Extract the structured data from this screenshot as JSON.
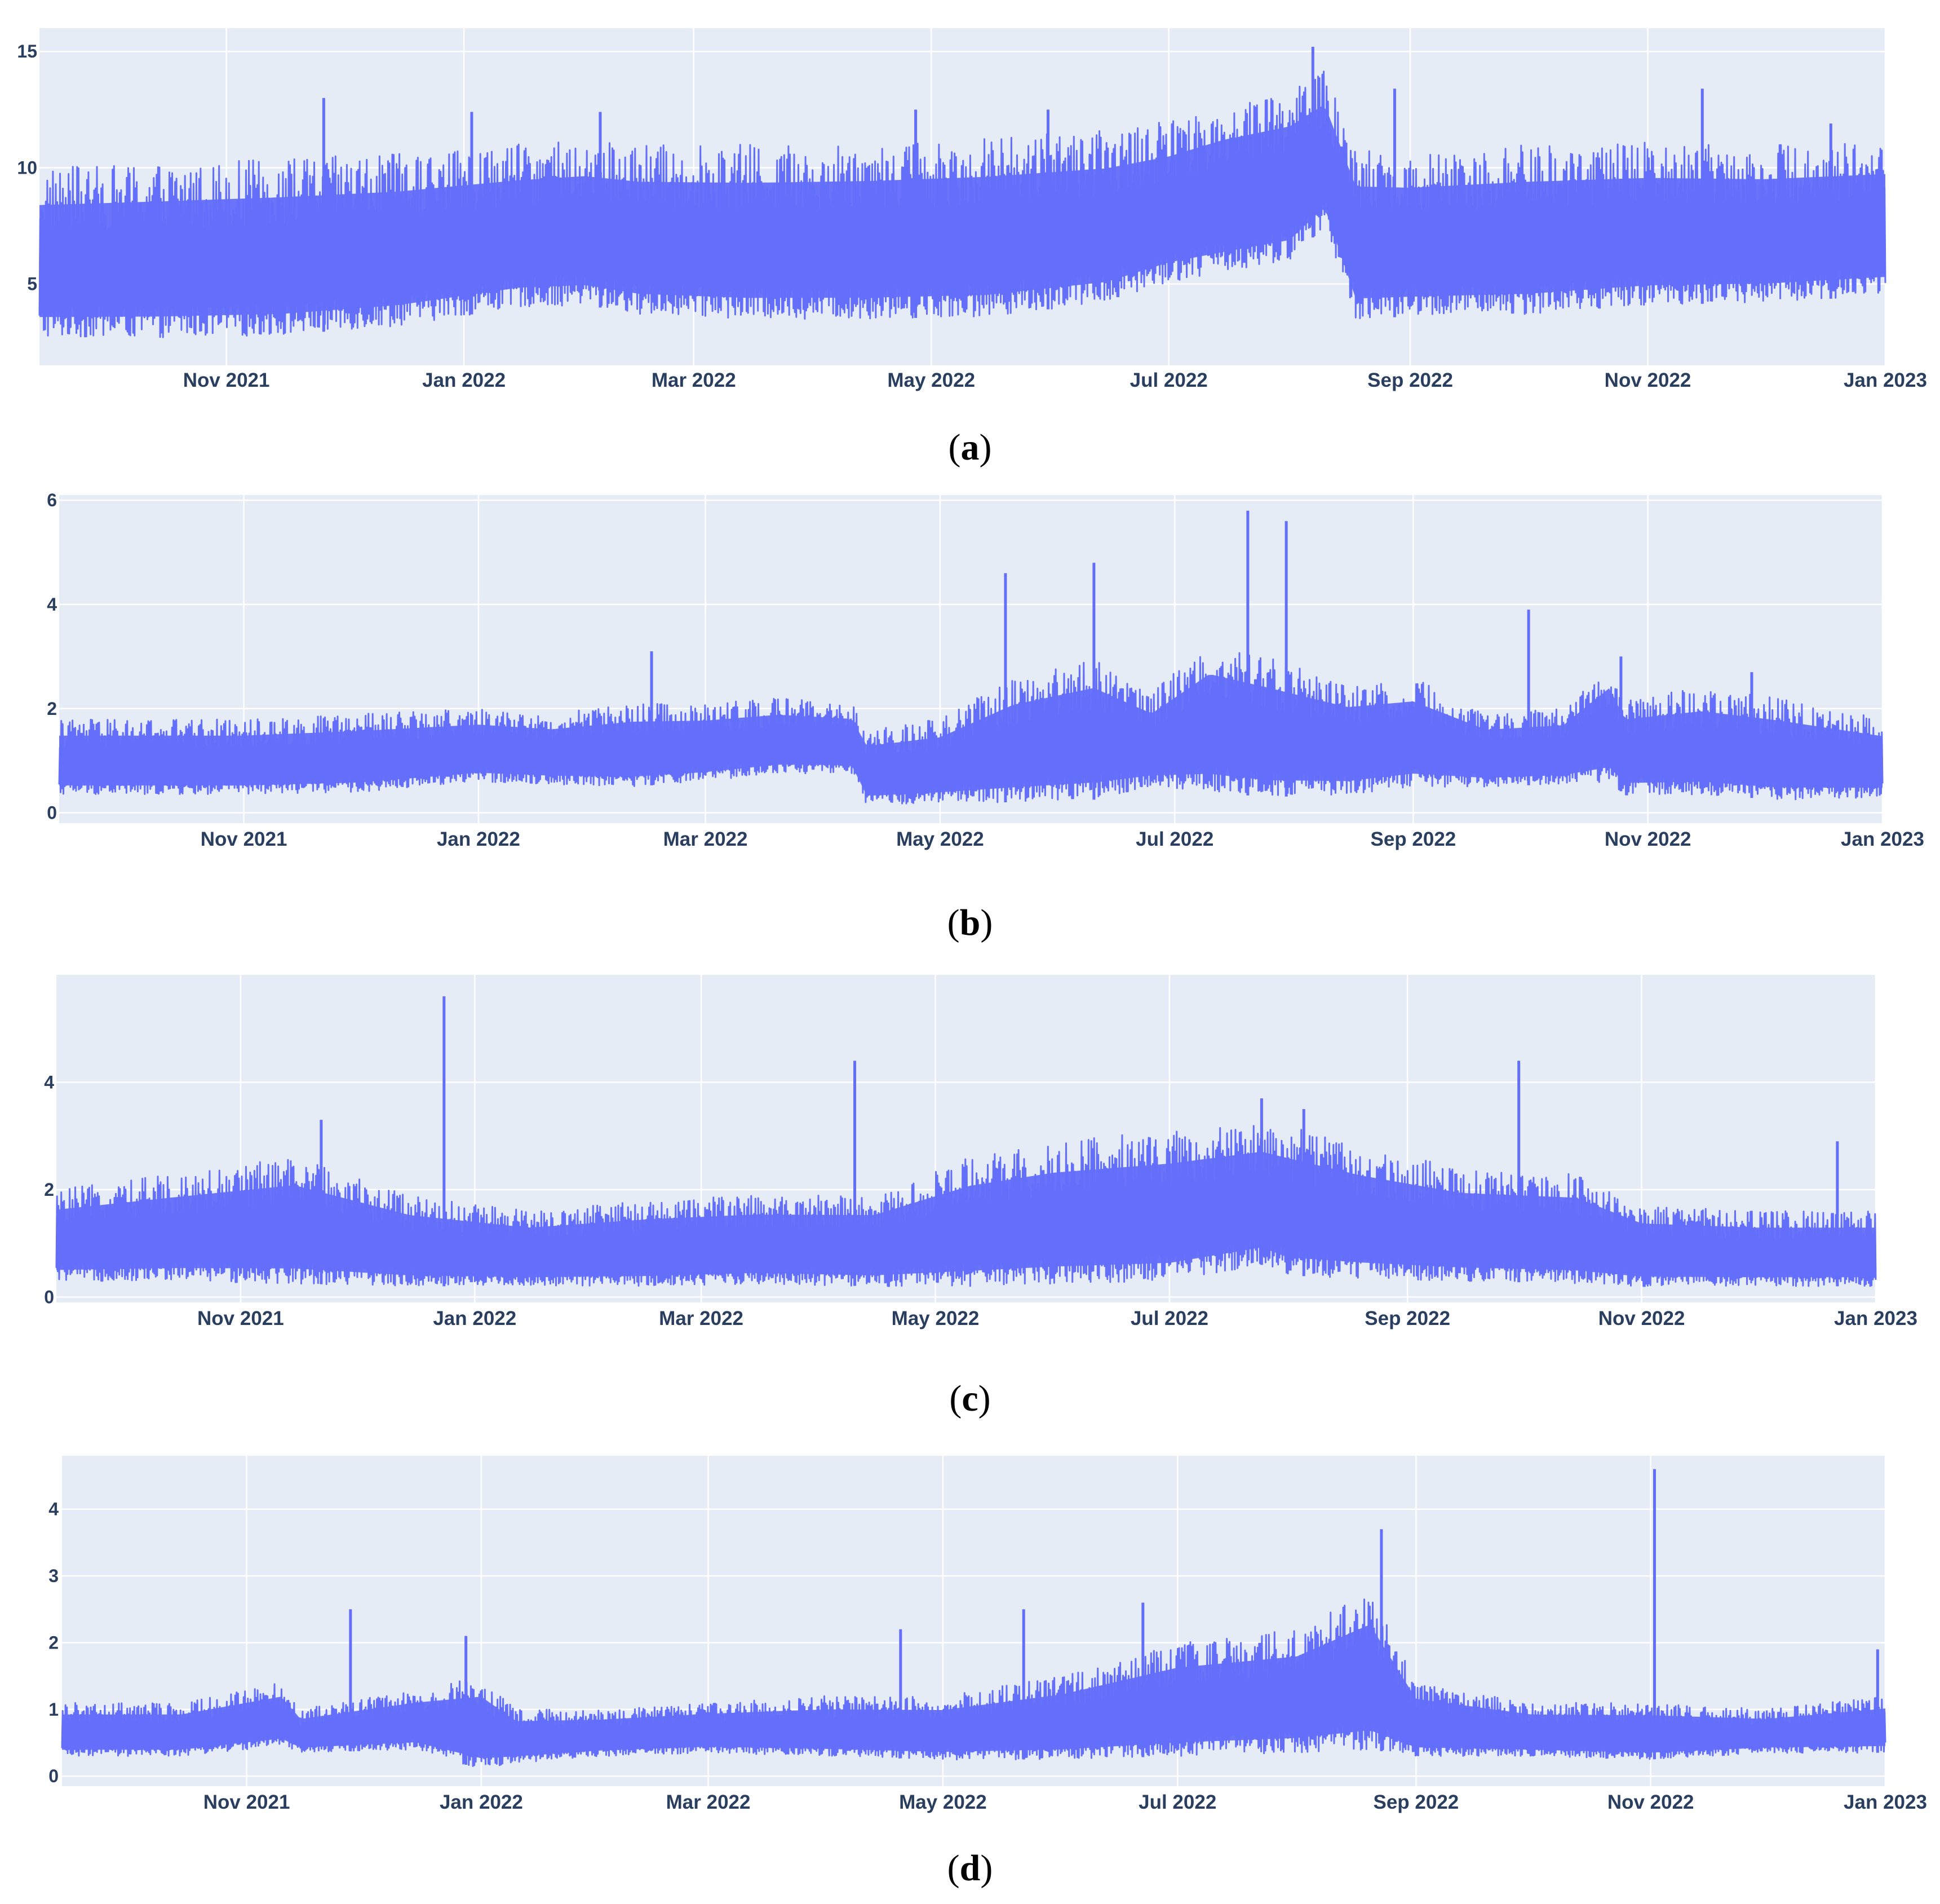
{
  "chart_data": [
    {
      "type": "line",
      "panel_label": "a",
      "x_tick_labels": [
        "Nov 2021",
        "Jan 2022",
        "Mar 2022",
        "May 2022",
        "Jul 2022",
        "Sep 2022",
        "Nov 2022",
        "Jan 2023"
      ],
      "y_ticks": [
        5,
        10,
        15
      ],
      "xlim": [
        "2021-09-14",
        "2023-01-01"
      ],
      "ylim": [
        1.5,
        16.0
      ],
      "grid": true,
      "series_color": "#636efa",
      "plot_background": "#e5ecf6",
      "series_envelope": {
        "x": [
          "2021-09-14",
          "2021-10-15",
          "2021-11-15",
          "2021-12-15",
          "2022-01-15",
          "2022-02-01",
          "2022-02-15",
          "2022-03-15",
          "2022-04-15",
          "2022-05-15",
          "2022-06-15",
          "2022-07-01",
          "2022-07-15",
          "2022-08-01",
          "2022-08-10",
          "2022-08-18",
          "2022-09-01",
          "2022-10-01",
          "2022-11-01",
          "2022-12-01",
          "2023-01-01"
        ],
        "low": [
          2.7,
          2.7,
          2.8,
          3.2,
          4.0,
          4.1,
          3.7,
          3.5,
          3.5,
          3.6,
          4.2,
          5.1,
          5.5,
          6.0,
          7.5,
          3.5,
          3.6,
          3.7,
          4.1,
          4.2,
          4.5
        ],
        "high": [
          10.0,
          10.2,
          10.4,
          10.6,
          11.0,
          11.2,
          11.0,
          11.0,
          11.1,
          11.3,
          11.6,
          12.0,
          12.8,
          13.4,
          14.2,
          10.8,
          10.7,
          11.0,
          11.1,
          11.0,
          11.2
        ],
        "peaks": [
          [
            "2021-11-26",
            13.0
          ],
          [
            "2022-01-03",
            12.4
          ],
          [
            "2022-02-05",
            12.4
          ],
          [
            "2022-04-27",
            12.5
          ],
          [
            "2022-05-31",
            12.5
          ],
          [
            "2022-08-07",
            15.2
          ],
          [
            "2022-08-28",
            13.4
          ],
          [
            "2022-11-15",
            13.4
          ],
          [
            "2022-12-18",
            11.9
          ]
        ]
      }
    },
    {
      "type": "line",
      "panel_label": "b",
      "x_tick_labels": [
        "Nov 2021",
        "Jan 2022",
        "Mar 2022",
        "May 2022",
        "Jul 2022",
        "Sep 2022",
        "Nov 2022",
        "Jan 2023"
      ],
      "y_ticks": [
        0,
        2,
        4,
        6
      ],
      "xlim": [
        "2021-09-14",
        "2023-01-01"
      ],
      "ylim": [
        -0.2,
        6.1
      ],
      "grid": true,
      "series_color": "#636efa",
      "plot_background": "#e5ecf6",
      "series_envelope": {
        "x": [
          "2021-09-14",
          "2021-11-01",
          "2021-12-01",
          "2022-01-01",
          "2022-01-20",
          "2022-02-10",
          "2022-03-01",
          "2022-03-20",
          "2022-04-08",
          "2022-04-12",
          "2022-05-01",
          "2022-05-20",
          "2022-06-10",
          "2022-06-25",
          "2022-07-10",
          "2022-07-25",
          "2022-08-15",
          "2022-09-01",
          "2022-09-20",
          "2022-10-10",
          "2022-10-22",
          "2022-10-26",
          "2022-11-15",
          "2022-12-05",
          "2023-01-01"
        ],
        "low": [
          0.35,
          0.35,
          0.4,
          0.6,
          0.55,
          0.5,
          0.6,
          0.75,
          0.75,
          0.15,
          0.2,
          0.2,
          0.25,
          0.5,
          0.4,
          0.3,
          0.35,
          0.5,
          0.5,
          0.55,
          0.6,
          0.35,
          0.35,
          0.25,
          0.3
        ],
        "high": [
          1.8,
          1.8,
          1.9,
          2.0,
          1.9,
          2.1,
          2.1,
          2.2,
          2.1,
          1.6,
          1.8,
          2.6,
          3.0,
          2.3,
          3.3,
          3.0,
          2.5,
          2.6,
          1.9,
          2.0,
          2.9,
          2.2,
          2.4,
          2.2,
          1.8
        ],
        "peaks": [
          [
            "2022-02-15",
            3.1
          ],
          [
            "2022-05-18",
            4.6
          ],
          [
            "2022-06-10",
            4.8
          ],
          [
            "2022-07-20",
            5.8
          ],
          [
            "2022-07-30",
            5.6
          ],
          [
            "2022-10-01",
            3.9
          ],
          [
            "2022-10-25",
            3.0
          ],
          [
            "2022-11-28",
            2.7
          ]
        ]
      }
    },
    {
      "type": "line",
      "panel_label": "c",
      "x_tick_labels": [
        "Nov 2021",
        "Jan 2022",
        "Mar 2022",
        "May 2022",
        "Jul 2022",
        "Sep 2022",
        "Nov 2022",
        "Jan 2023"
      ],
      "y_ticks": [
        0,
        2,
        4
      ],
      "xlim": [
        "2021-09-14",
        "2023-01-01"
      ],
      "ylim": [
        -0.1,
        6.0
      ],
      "grid": true,
      "series_color": "#636efa",
      "plot_background": "#e5ecf6",
      "series_envelope": {
        "x": [
          "2021-09-14",
          "2021-10-15",
          "2021-11-15",
          "2021-12-15",
          "2022-01-15",
          "2022-02-15",
          "2022-03-15",
          "2022-04-15",
          "2022-05-10",
          "2022-06-01",
          "2022-07-01",
          "2022-07-25",
          "2022-08-01",
          "2022-08-20",
          "2022-09-15",
          "2022-10-15",
          "2022-11-01",
          "2022-12-01",
          "2023-01-01"
        ],
        "low": [
          0.3,
          0.3,
          0.25,
          0.2,
          0.2,
          0.2,
          0.25,
          0.2,
          0.2,
          0.25,
          0.3,
          0.6,
          0.4,
          0.35,
          0.3,
          0.25,
          0.2,
          0.2,
          0.2
        ],
        "high": [
          2.0,
          2.3,
          2.6,
          1.9,
          1.6,
          1.8,
          1.9,
          1.9,
          2.6,
          2.9,
          3.1,
          3.3,
          3.2,
          2.8,
          2.4,
          2.3,
          1.7,
          1.6,
          1.6
        ],
        "peaks": [
          [
            "2021-11-22",
            3.3
          ],
          [
            "2021-12-24",
            5.6
          ],
          [
            "2022-04-10",
            4.4
          ],
          [
            "2022-07-25",
            3.7
          ],
          [
            "2022-08-05",
            3.5
          ],
          [
            "2022-09-30",
            4.4
          ],
          [
            "2022-12-22",
            2.9
          ]
        ]
      }
    },
    {
      "type": "line",
      "panel_label": "d",
      "x_tick_labels": [
        "Nov 2021",
        "Jan 2022",
        "Mar 2022",
        "May 2022",
        "Jul 2022",
        "Sep 2022",
        "Nov 2022",
        "Jan 2023"
      ],
      "y_ticks": [
        0,
        1,
        2,
        3,
        4
      ],
      "xlim": [
        "2021-09-14",
        "2023-01-01"
      ],
      "ylim": [
        -0.15,
        4.8
      ],
      "grid": true,
      "series_color": "#636efa",
      "plot_background": "#e5ecf6",
      "series_envelope": {
        "x": [
          "2021-09-14",
          "2021-10-15",
          "2021-11-10",
          "2021-11-15",
          "2021-12-15",
          "2022-01-01",
          "2022-01-10",
          "2022-02-01",
          "2022-03-01",
          "2022-04-01",
          "2022-05-01",
          "2022-06-01",
          "2022-07-01",
          "2022-08-01",
          "2022-08-20",
          "2022-09-01",
          "2022-10-01",
          "2022-11-01",
          "2022-12-01",
          "2023-01-01"
        ],
        "low": [
          0.3,
          0.3,
          0.45,
          0.35,
          0.4,
          0.1,
          0.2,
          0.3,
          0.35,
          0.3,
          0.25,
          0.25,
          0.3,
          0.35,
          0.4,
          0.3,
          0.3,
          0.25,
          0.35,
          0.35
        ],
        "high": [
          1.1,
          1.1,
          1.4,
          1.0,
          1.3,
          1.5,
          1.0,
          1.0,
          1.1,
          1.2,
          1.2,
          1.5,
          2.0,
          2.2,
          2.8,
          1.4,
          1.1,
          1.1,
          1.0,
          1.2
        ],
        "peaks": [
          [
            "2021-11-28",
            2.5
          ],
          [
            "2021-12-28",
            2.1
          ],
          [
            "2022-04-20",
            2.2
          ],
          [
            "2022-05-22",
            2.5
          ],
          [
            "2022-06-22",
            2.6
          ],
          [
            "2022-08-23",
            3.7
          ],
          [
            "2022-11-02",
            4.6
          ],
          [
            "2022-12-30",
            1.9
          ]
        ]
      }
    }
  ]
}
